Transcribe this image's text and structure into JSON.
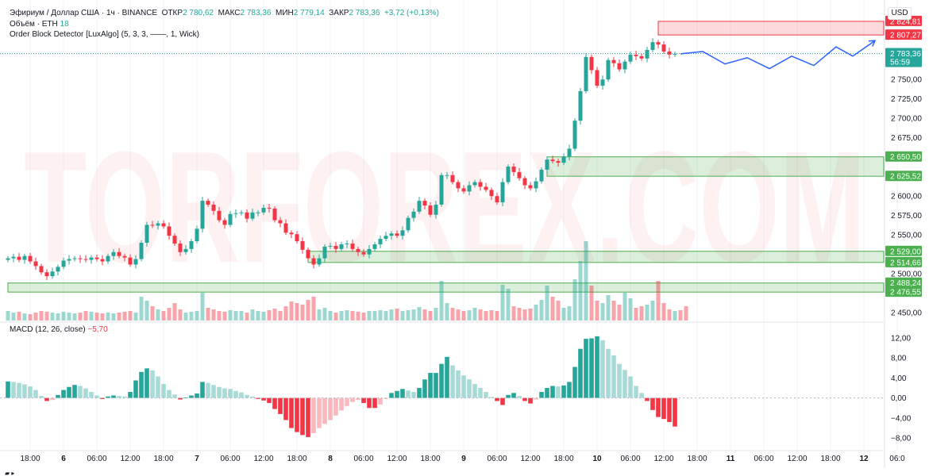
{
  "symbol_bar": {
    "symbol": "Эфириум / Доллар США · 1ч · BINANCE",
    "open_label": "ОТКР",
    "open": "2 780,62",
    "high_label": "МАКС",
    "high": "2 783,36",
    "low_label": "МИН",
    "low": "2 779,14",
    "close_label": "ЗАКР",
    "close": "2 783,36",
    "change": "+3,72 (+0,13%)"
  },
  "volume_legend": {
    "label": "Объём · ETH",
    "value": "18"
  },
  "indicator_legend": {
    "label": "Order Block Detector [LuxAlgo] (5, 3, 3, ——, 1, Wick)"
  },
  "currency": "USD",
  "macd_legend": {
    "label": "MACD (12, 26, close)",
    "value": "−5,70"
  },
  "watermark": "TORFOREX.COM",
  "colors": {
    "up": "#26a69a",
    "down": "#f23645",
    "bull_zone": "#4caf50",
    "bear_zone": "#f23645",
    "forecast": "#2962ff"
  },
  "chart_data": [
    {
      "type": "candlestick",
      "ylim": [
        2440,
        2840
      ],
      "y_ticks": [
        "2 750,00",
        "2 725,00",
        "2 700,00",
        "2 675,00",
        "2 600,00",
        "2 575,00",
        "2 550,00",
        "2 500,00",
        "2 450,00"
      ],
      "x_ticks": [
        "18:00",
        "6",
        "06:00",
        "12:00",
        "18:00",
        "7",
        "06:00",
        "12:00",
        "18:00",
        "8",
        "06:00",
        "12:00",
        "18:00",
        "9",
        "06:00",
        "12:00",
        "18:00",
        "10",
        "06:00",
        "12:00",
        "18:00",
        "11",
        "06:00",
        "12:00",
        "18:00",
        "12",
        "06:0"
      ],
      "x_tick_bar_index": [
        4,
        10,
        16,
        22,
        28,
        34,
        40,
        46,
        52,
        58,
        64,
        70,
        76,
        82,
        88,
        94,
        100,
        106,
        112,
        118,
        124,
        130,
        136,
        142,
        148,
        154,
        160
      ],
      "closes": [
        2520,
        2522,
        2518,
        2523,
        2516,
        2510,
        2502,
        2497,
        2503,
        2509,
        2517,
        2519,
        2520,
        2519,
        2518,
        2521,
        2519,
        2516,
        2523,
        2528,
        2523,
        2521,
        2512,
        2519,
        2540,
        2563,
        2562,
        2565,
        2561,
        2549,
        2539,
        2528,
        2532,
        2542,
        2558,
        2594,
        2589,
        2581,
        2569,
        2563,
        2577,
        2578,
        2579,
        2571,
        2579,
        2579,
        2585,
        2584,
        2569,
        2565,
        2553,
        2551,
        2542,
        2531,
        2520,
        2512,
        2520,
        2535,
        2536,
        2532,
        2538,
        2539,
        2532,
        2528,
        2525,
        2532,
        2538,
        2545,
        2549,
        2552,
        2549,
        2556,
        2572,
        2580,
        2594,
        2588,
        2576,
        2589,
        2627,
        2627,
        2618,
        2610,
        2606,
        2614,
        2618,
        2612,
        2608,
        2600,
        2592,
        2618,
        2638,
        2631,
        2623,
        2614,
        2610,
        2619,
        2634,
        2647,
        2645,
        2643,
        2651,
        2661,
        2697,
        2735,
        2779,
        2762,
        2742,
        2750,
        2775,
        2771,
        2763,
        2773,
        2782,
        2780,
        2777,
        2788,
        2798,
        2795,
        2786,
        2782,
        2783
      ],
      "current_price": "2 783,36",
      "countdown": "56:59",
      "price_labels": [
        "2 824,81",
        "2 807,27",
        "2 650,50",
        "2 625,52",
        "2 529,00",
        "2 514,66",
        "2 488,24",
        "2 476,55"
      ],
      "bearish_order_blocks": [
        {
          "top": 2824.81,
          "bottom": 2807.27,
          "start_index": 117
        }
      ],
      "bullish_order_blocks": [
        {
          "top": 2650.5,
          "bottom": 2625.52,
          "start_index": 97
        },
        {
          "top": 2529.0,
          "bottom": 2514.66,
          "start_index": 54
        },
        {
          "top": 2488.24,
          "bottom": 2476.55,
          "start_index": 0
        }
      ],
      "forecast_path": [
        [
          121,
          2783
        ],
        [
          125,
          2786
        ],
        [
          129,
          2770
        ],
        [
          133,
          2778
        ],
        [
          137,
          2764
        ],
        [
          141,
          2780
        ],
        [
          145,
          2768
        ],
        [
          149,
          2792
        ],
        [
          152,
          2780
        ],
        [
          156,
          2800
        ]
      ],
      "volume_max": 100,
      "volume": [
        12,
        10,
        11,
        9,
        8,
        10,
        12,
        11,
        10,
        9,
        11,
        10,
        9,
        10,
        12,
        11,
        10,
        9,
        10,
        9,
        10,
        11,
        12,
        10,
        30,
        25,
        18,
        14,
        12,
        16,
        22,
        14,
        10,
        11,
        12,
        35,
        16,
        14,
        12,
        11,
        13,
        12,
        12,
        10,
        14,
        12,
        11,
        13,
        15,
        12,
        18,
        24,
        22,
        20,
        26,
        30,
        14,
        16,
        12,
        10,
        12,
        13,
        12,
        11,
        10,
        12,
        12,
        13,
        12,
        14,
        15,
        12,
        13,
        14,
        17,
        14,
        12,
        16,
        50,
        22,
        16,
        14,
        12,
        13,
        16,
        14,
        12,
        13,
        12,
        45,
        40,
        18,
        16,
        14,
        15,
        20,
        26,
        44,
        30,
        25,
        16,
        18,
        52,
        75,
        100,
        44,
        25,
        22,
        32,
        25,
        20,
        35,
        28,
        16,
        18,
        20,
        25,
        50,
        22,
        14,
        12,
        13,
        18
      ]
    },
    {
      "type": "histogram",
      "title": "MACD (12, 26, close)",
      "ylim": [
        -10.5,
        14.5
      ],
      "y_ticks": [
        "12,00",
        "8,00",
        "4,00",
        "0,00",
        "−4,00",
        "−8,00"
      ],
      "values": [
        3.3,
        3.2,
        3.0,
        2.7,
        2.3,
        1.6,
        0.4,
        -0.6,
        -0.4,
        0.6,
        1.6,
        2.2,
        2.6,
        2.4,
        1.9,
        1.2,
        0.5,
        -0.2,
        0.3,
        0.5,
        0.4,
        0.3,
        1.2,
        3.5,
        5.2,
        5.9,
        5.5,
        4.3,
        2.8,
        1.6,
        0.7,
        -0.3,
        0.1,
        0.5,
        0.9,
        3.2,
        3.0,
        2.6,
        2.2,
        1.9,
        1.8,
        1.4,
        1.1,
        0.6,
        0.3,
        -0.2,
        -0.5,
        -1.0,
        -2.2,
        -3.2,
        -4.4,
        -6.0,
        -6.8,
        -7.4,
        -7.8,
        -7.0,
        -6.0,
        -5.2,
        -4.4,
        -3.5,
        -2.5,
        -1.6,
        -0.8,
        -0.4,
        -1.0,
        -2.0,
        -2.0,
        -1.3,
        -0.2,
        1.0,
        1.4,
        1.8,
        1.5,
        1.2,
        2.0,
        3.7,
        5.0,
        5.0,
        6.8,
        8.2,
        6.5,
        5.5,
        4.5,
        3.7,
        2.8,
        2.0,
        1.2,
        0.2,
        -0.6,
        -1.4,
        0.6,
        1.0,
        0.4,
        -0.6,
        -1.1,
        -0.3,
        1.2,
        2.0,
        2.4,
        2.3,
        2.5,
        3.2,
        6.2,
        9.8,
        11.8,
        11.9,
        12.3,
        11.5,
        9.8,
        8.5,
        6.8,
        5.6,
        4.3,
        2.4,
        1.0,
        -0.6,
        -2.4,
        -3.8,
        -4.2,
        -4.8,
        -5.7
      ]
    }
  ]
}
